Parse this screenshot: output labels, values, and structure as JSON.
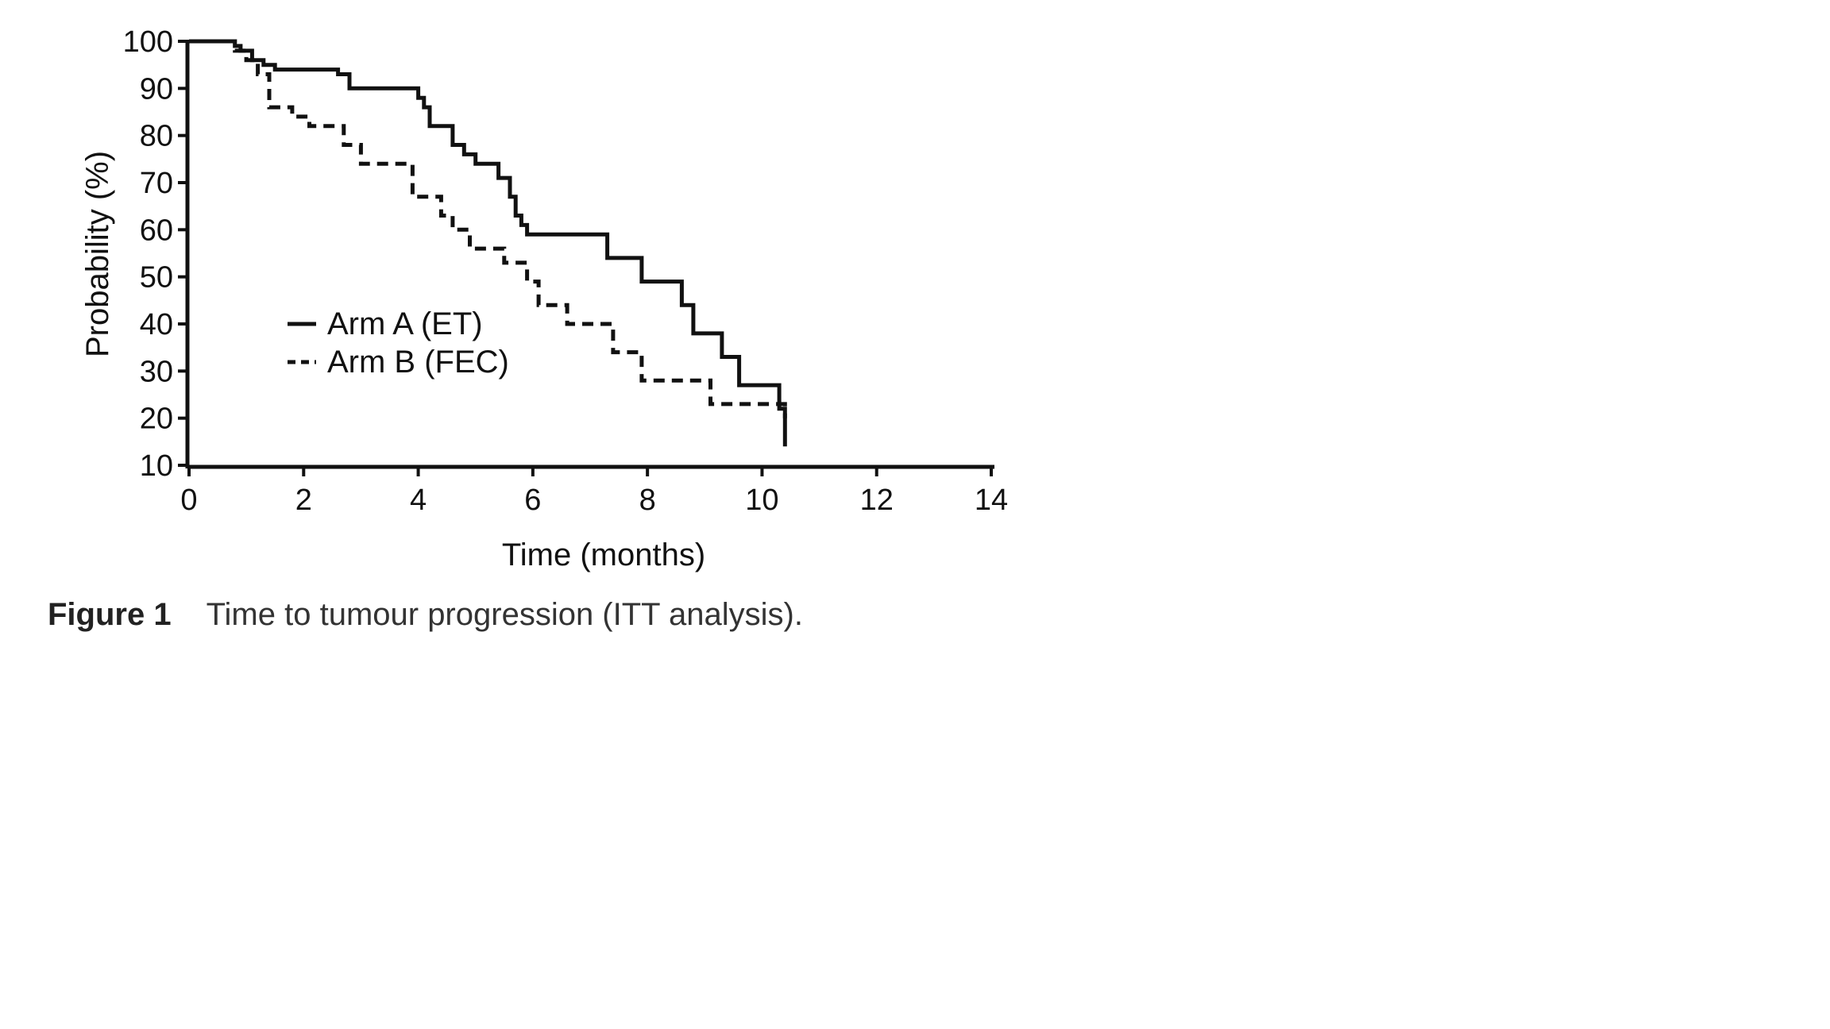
{
  "chart_data": {
    "type": "line",
    "xlabel": "Time (months)",
    "ylabel": "Probability (%)",
    "xlim": [
      0,
      14
    ],
    "ylim": [
      10,
      100
    ],
    "x_ticks": [
      0,
      2,
      4,
      6,
      8,
      10,
      12,
      14
    ],
    "y_ticks": [
      10,
      20,
      30,
      40,
      50,
      60,
      70,
      80,
      90,
      100
    ],
    "grid": false,
    "legend_placement": "lower-left",
    "series": [
      {
        "name": "Arm A (ET)",
        "style": "solid",
        "color": "#111111",
        "points": [
          [
            0,
            100
          ],
          [
            0.8,
            100
          ],
          [
            0.8,
            99
          ],
          [
            0.9,
            99
          ],
          [
            0.9,
            98
          ],
          [
            1.1,
            98
          ],
          [
            1.1,
            96
          ],
          [
            1.3,
            96
          ],
          [
            1.3,
            95
          ],
          [
            1.5,
            95
          ],
          [
            1.5,
            94
          ],
          [
            2.6,
            94
          ],
          [
            2.6,
            93
          ],
          [
            2.8,
            93
          ],
          [
            2.8,
            90
          ],
          [
            4.0,
            90
          ],
          [
            4.0,
            88
          ],
          [
            4.1,
            88
          ],
          [
            4.1,
            86
          ],
          [
            4.2,
            86
          ],
          [
            4.2,
            82
          ],
          [
            4.6,
            82
          ],
          [
            4.6,
            78
          ],
          [
            4.8,
            78
          ],
          [
            4.8,
            76
          ],
          [
            5.0,
            76
          ],
          [
            5.0,
            74
          ],
          [
            5.4,
            74
          ],
          [
            5.4,
            71
          ],
          [
            5.6,
            71
          ],
          [
            5.6,
            67
          ],
          [
            5.7,
            67
          ],
          [
            5.7,
            63
          ],
          [
            5.8,
            63
          ],
          [
            5.8,
            61
          ],
          [
            5.9,
            61
          ],
          [
            5.9,
            59
          ],
          [
            7.3,
            59
          ],
          [
            7.3,
            54
          ],
          [
            7.9,
            54
          ],
          [
            7.9,
            49
          ],
          [
            8.6,
            49
          ],
          [
            8.6,
            44
          ],
          [
            8.8,
            44
          ],
          [
            8.8,
            38
          ],
          [
            9.3,
            38
          ],
          [
            9.3,
            33
          ],
          [
            9.6,
            33
          ],
          [
            9.6,
            27
          ],
          [
            10.3,
            27
          ],
          [
            10.3,
            22
          ],
          [
            10.4,
            22
          ],
          [
            10.4,
            14
          ]
        ]
      },
      {
        "name": "Arm B (FEC)",
        "style": "dashed",
        "color": "#111111",
        "points": [
          [
            0,
            100
          ],
          [
            0.8,
            100
          ],
          [
            0.8,
            98
          ],
          [
            1.0,
            98
          ],
          [
            1.0,
            96
          ],
          [
            1.2,
            96
          ],
          [
            1.2,
            93
          ],
          [
            1.4,
            93
          ],
          [
            1.4,
            86
          ],
          [
            1.8,
            86
          ],
          [
            1.8,
            84
          ],
          [
            2.1,
            84
          ],
          [
            2.1,
            82
          ],
          [
            2.7,
            82
          ],
          [
            2.7,
            78
          ],
          [
            3.0,
            78
          ],
          [
            3.0,
            74
          ],
          [
            3.9,
            74
          ],
          [
            3.9,
            67
          ],
          [
            4.4,
            67
          ],
          [
            4.4,
            63
          ],
          [
            4.6,
            63
          ],
          [
            4.6,
            60
          ],
          [
            4.9,
            60
          ],
          [
            4.9,
            56
          ],
          [
            5.5,
            56
          ],
          [
            5.5,
            53
          ],
          [
            5.9,
            53
          ],
          [
            5.9,
            49
          ],
          [
            6.1,
            49
          ],
          [
            6.1,
            44
          ],
          [
            6.6,
            44
          ],
          [
            6.6,
            40
          ],
          [
            7.4,
            40
          ],
          [
            7.4,
            34
          ],
          [
            7.9,
            34
          ],
          [
            7.9,
            28
          ],
          [
            9.1,
            28
          ],
          [
            9.1,
            23
          ],
          [
            10.4,
            23
          ],
          [
            10.4,
            20
          ]
        ]
      }
    ]
  },
  "caption": {
    "label": "Figure 1",
    "text": "Time to tumour progression (ITT analysis)."
  }
}
